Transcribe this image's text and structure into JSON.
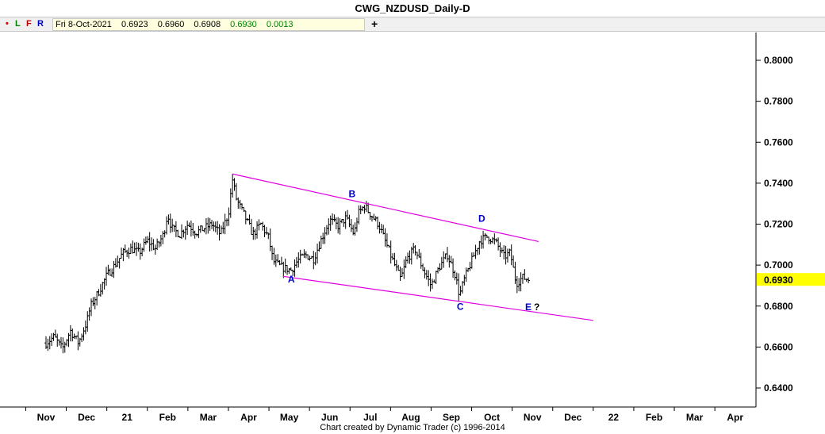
{
  "window": {
    "title": "CWG_NZDUSD_Daily-D"
  },
  "toolbar": {
    "buttons": [
      {
        "label": "•",
        "color": "#d00000"
      },
      {
        "label": "L",
        "color": "#008000"
      },
      {
        "label": "F",
        "color": "#c00000"
      },
      {
        "label": "R",
        "color": "#0000c0"
      }
    ],
    "info": {
      "date": "Fri 8-Oct-2021",
      "open": "0.6923",
      "high": "0.6960",
      "low": "0.6908",
      "close": "0.6930",
      "change": "0.0013"
    },
    "add_icon": "+"
  },
  "footer": "Chart created by Dynamic Trader  (c) 1996-2014",
  "chart_data": {
    "type": "bar",
    "title": "CWG_NZDUSD_Daily-D",
    "ylim": [
      0.635,
      0.805
    ],
    "y_ticks": [
      "0.8000",
      "0.7800",
      "0.7600",
      "0.7400",
      "0.7200",
      "0.7000",
      "0.6800",
      "0.6600",
      "0.6400"
    ],
    "x_ticks": [
      "Nov",
      "Dec",
      "21",
      "Feb",
      "Mar",
      "Apr",
      "May",
      "Jun",
      "Jul",
      "Aug",
      "Sep",
      "Oct",
      "Nov",
      "Dec",
      "22",
      "Feb",
      "Mar",
      "Apr"
    ],
    "last_price": "0.6930",
    "last_price_color": "#ffff00",
    "grid": false,
    "trendline_color": "#e000e0",
    "wave_label_color": "#0000cc",
    "wave_labels": [
      {
        "text": "A",
        "date_index": 6.05,
        "price": 0.6915
      },
      {
        "text": "B",
        "date_index": 7.55,
        "price": 0.7332
      },
      {
        "text": "C",
        "date_index": 10.22,
        "price": 0.6782
      },
      {
        "text": "D",
        "date_index": 10.75,
        "price": 0.7212
      },
      {
        "text": "E?",
        "date_index": 12.0,
        "price": 0.678
      }
    ],
    "trendlines": [
      {
        "name": "upper",
        "start": {
          "date_index": 4.6,
          "price": 0.7445
        },
        "end": {
          "date_index": 12.15,
          "price": 0.7115
        }
      },
      {
        "name": "lower",
        "start": {
          "date_index": 5.85,
          "price": 0.6945
        },
        "end": {
          "date_index": 13.5,
          "price": 0.673
        }
      }
    ],
    "price_path": [
      [
        0.0,
        0.662
      ],
      [
        0.2,
        0.665
      ],
      [
        0.4,
        0.659
      ],
      [
        0.6,
        0.668
      ],
      [
        0.8,
        0.662
      ],
      [
        1.0,
        0.672
      ],
      [
        1.1,
        0.68
      ],
      [
        1.3,
        0.687
      ],
      [
        1.5,
        0.695
      ],
      [
        1.7,
        0.7
      ],
      [
        1.9,
        0.706
      ],
      [
        2.1,
        0.708
      ],
      [
        2.3,
        0.706
      ],
      [
        2.5,
        0.712
      ],
      [
        2.7,
        0.708
      ],
      [
        2.9,
        0.715
      ],
      [
        3.0,
        0.725
      ],
      [
        3.1,
        0.718
      ],
      [
        3.3,
        0.715
      ],
      [
        3.5,
        0.72
      ],
      [
        3.7,
        0.716
      ],
      [
        3.9,
        0.718
      ],
      [
        4.1,
        0.72
      ],
      [
        4.3,
        0.715
      ],
      [
        4.5,
        0.725
      ],
      [
        4.6,
        0.742
      ],
      [
        4.7,
        0.732
      ],
      [
        4.9,
        0.724
      ],
      [
        5.1,
        0.715
      ],
      [
        5.3,
        0.72
      ],
      [
        5.5,
        0.713
      ],
      [
        5.6,
        0.702
      ],
      [
        5.8,
        0.699
      ],
      [
        6.05,
        0.6975
      ],
      [
        6.2,
        0.702
      ],
      [
        6.4,
        0.705
      ],
      [
        6.6,
        0.703
      ],
      [
        6.8,
        0.713
      ],
      [
        7.0,
        0.722
      ],
      [
        7.2,
        0.719
      ],
      [
        7.4,
        0.723
      ],
      [
        7.6,
        0.715
      ],
      [
        7.7,
        0.725
      ],
      [
        7.85,
        0.729
      ],
      [
        8.0,
        0.725
      ],
      [
        8.2,
        0.72
      ],
      [
        8.4,
        0.71
      ],
      [
        8.6,
        0.7
      ],
      [
        8.75,
        0.693
      ],
      [
        8.9,
        0.703
      ],
      [
        9.1,
        0.708
      ],
      [
        9.3,
        0.698
      ],
      [
        9.5,
        0.69
      ],
      [
        9.7,
        0.699
      ],
      [
        9.9,
        0.705
      ],
      [
        10.1,
        0.695
      ],
      [
        10.2,
        0.685
      ],
      [
        10.3,
        0.692
      ],
      [
        10.5,
        0.702
      ],
      [
        10.7,
        0.712
      ],
      [
        10.9,
        0.714
      ],
      [
        11.1,
        0.711
      ],
      [
        11.3,
        0.704
      ],
      [
        11.45,
        0.706
      ],
      [
        11.6,
        0.691
      ],
      [
        11.75,
        0.694
      ],
      [
        11.9,
        0.693
      ]
    ]
  }
}
